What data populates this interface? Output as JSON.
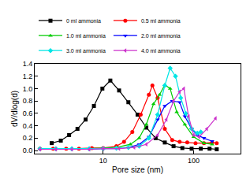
{
  "chart_data": {
    "type": "line",
    "x_label": "Pore size (nm)",
    "y_label": "dV/dlog(d)",
    "log": "x",
    "grid": false,
    "legend": "top",
    "xlim": [
      1.75,
      330
    ],
    "xticks": [
      10,
      100
    ],
    "ylim": [
      -0.05,
      1.4
    ],
    "yticks": [
      {
        "value": 0,
        "label": "0.0"
      },
      0.2,
      0.4,
      0.6,
      0.8,
      {
        "value": 1,
        "label": "1.0"
      },
      1.2,
      1.4
    ],
    "series": [
      {
        "name": "0 ml ammonia",
        "color": "#000000",
        "marker": "square",
        "x": [
          2.7,
          3.4,
          4.2,
          5.2,
          6.4,
          7.9,
          9.8,
          12,
          15,
          19,
          24,
          30,
          38,
          48,
          60,
          75,
          95,
          120,
          150,
          180
        ],
        "values": [
          0.12,
          0.16,
          0.25,
          0.35,
          0.5,
          0.72,
          1.0,
          1.13,
          0.97,
          0.78,
          0.58,
          0.37,
          0.2,
          0.13,
          0.07,
          0.04,
          0.03,
          0.03,
          0.03,
          0.02
        ]
      },
      {
        "name": "0.5 ml ammonia",
        "color": "#ff0000",
        "marker": "circle",
        "x": [
          2,
          2.8,
          3.9,
          5.4,
          7.5,
          10,
          14,
          17,
          21,
          26,
          32,
          35,
          40,
          48,
          58,
          70,
          85,
          105,
          130,
          160,
          180
        ],
        "values": [
          0.03,
          0.03,
          0.03,
          0.03,
          0.04,
          0.04,
          0.07,
          0.14,
          0.3,
          0.58,
          0.9,
          1.05,
          0.85,
          0.35,
          0.17,
          0.14,
          0.13,
          0.12,
          0.12,
          0.13,
          0.12
        ]
      },
      {
        "name": "1.0 ml ammonia",
        "color": "#00cc00",
        "marker": "triangle-up",
        "x": [
          2,
          3,
          4.5,
          7,
          10,
          14,
          20,
          25,
          30,
          36,
          42,
          48,
          55,
          65,
          80,
          100,
          130,
          160
        ],
        "values": [
          0.03,
          0.03,
          0.03,
          0.03,
          0.04,
          0.05,
          0.1,
          0.2,
          0.42,
          0.75,
          0.9,
          1.06,
          1.0,
          0.62,
          0.42,
          0.22,
          0.12,
          0.1
        ]
      },
      {
        "name": "2.0 ml ammonia",
        "color": "#0000ff",
        "marker": "triangle-down",
        "x": [
          2,
          3,
          4.5,
          7,
          10,
          14,
          19,
          25,
          32,
          40,
          48,
          58,
          70,
          80,
          95,
          110,
          130,
          160
        ],
        "values": [
          0.02,
          0.02,
          0.02,
          0.02,
          0.03,
          0.03,
          0.05,
          0.1,
          0.22,
          0.5,
          0.72,
          0.8,
          0.78,
          0.55,
          0.35,
          0.25,
          0.2,
          0.15
        ]
      },
      {
        "name": "3.0 ml ammonia",
        "color": "#00e5e5",
        "marker": "diamond",
        "x": [
          2,
          3,
          4.5,
          7,
          10,
          14,
          19,
          25,
          32,
          40,
          48,
          55,
          63,
          72,
          82,
          95,
          110,
          120
        ],
        "values": [
          0.03,
          0.03,
          0.03,
          0.03,
          0.03,
          0.04,
          0.05,
          0.07,
          0.2,
          0.58,
          1.05,
          1.33,
          1.2,
          0.85,
          0.6,
          0.35,
          0.28,
          0.3
        ]
      },
      {
        "name": "4.0 ml ammonia",
        "color": "#cc33cc",
        "marker": "triangle-left",
        "x": [
          2,
          3,
          4.5,
          7,
          10,
          15,
          22,
          30,
          40,
          50,
          60,
          70,
          78,
          88,
          100,
          115,
          140,
          175
        ],
        "values": [
          0.02,
          0.02,
          0.02,
          0.02,
          0.03,
          0.03,
          0.05,
          0.1,
          0.25,
          0.5,
          0.8,
          0.95,
          1.0,
          0.55,
          0.25,
          0.22,
          0.35,
          0.52
        ]
      }
    ]
  }
}
